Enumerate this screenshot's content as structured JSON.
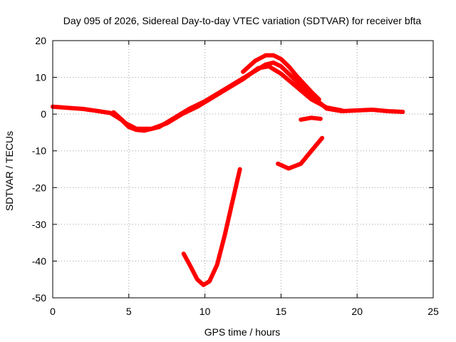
{
  "chart_data": {
    "type": "line",
    "title": "Day 095 of 2026, Sidereal Day-to-day VTEC variation (SDTVAR) for receiver bfta",
    "xlabel": "GPS time / hours",
    "ylabel": "SDTVAR / TECUs",
    "xlim": [
      0,
      25
    ],
    "ylim": [
      -50,
      20
    ],
    "xticks": [
      0,
      5,
      10,
      15,
      20,
      25
    ],
    "yticks": [
      -50,
      -40,
      -30,
      -20,
      -10,
      0,
      10,
      20
    ],
    "xtick_labels": [
      "0",
      "5",
      "10",
      "15",
      "20",
      "25"
    ],
    "ytick_labels": [
      "-50",
      "-40",
      "-30",
      "-20",
      "-10",
      "0",
      "10",
      "20"
    ],
    "grid": true,
    "legend": "none",
    "color": "#ff0000",
    "series": [
      {
        "name": "track-main-a",
        "x": [
          0,
          1,
          2,
          3,
          3.8,
          4.5,
          5,
          5.5,
          6,
          7,
          8,
          9,
          10,
          11,
          12,
          13,
          14,
          14.5,
          15,
          16,
          17,
          18,
          19,
          20,
          21,
          22,
          23
        ],
        "y": [
          2,
          1.7,
          1.4,
          0.8,
          0.3,
          -1.5,
          -3.5,
          -4.3,
          -4.5,
          -3.5,
          -1,
          1.5,
          3.5,
          6,
          8.5,
          11,
          13.5,
          14,
          13,
          9,
          5,
          1.5,
          0.8,
          1,
          1.2,
          0.8,
          0.6
        ]
      },
      {
        "name": "track-main-b",
        "x": [
          4,
          4.8,
          5.5,
          6.5,
          7.5,
          8.5,
          9.5,
          10.5,
          11.5,
          12.5,
          13.5,
          14.2,
          15,
          16,
          17,
          18,
          19
        ],
        "y": [
          0.5,
          -2.5,
          -4,
          -4,
          -2.5,
          0,
          2,
          4.5,
          7,
          9.5,
          12.5,
          13,
          11,
          7.5,
          4,
          1.8,
          1
        ]
      },
      {
        "name": "track-upper",
        "x": [
          12.5,
          13.3,
          14,
          14.5,
          15,
          15.5,
          16,
          17,
          17.5
        ],
        "y": [
          11.5,
          14.5,
          16,
          16,
          15,
          13,
          10.5,
          6,
          4
        ]
      },
      {
        "name": "track-short",
        "x": [
          16.3,
          17,
          17.6
        ],
        "y": [
          -1.5,
          -1,
          -1.3
        ]
      },
      {
        "name": "track-dip-right",
        "x": [
          14.8,
          15.5,
          16.3,
          17,
          17.7
        ],
        "y": [
          -13.5,
          -14.8,
          -13.5,
          -10,
          -6.5
        ]
      },
      {
        "name": "track-dip-main",
        "x": [
          8.6,
          9,
          9.5,
          9.9,
          10.3,
          10.8,
          11.3,
          11.8,
          12.3
        ],
        "y": [
          -38,
          -41,
          -45,
          -46.5,
          -45.5,
          -41,
          -33,
          -24,
          -15
        ]
      }
    ]
  }
}
